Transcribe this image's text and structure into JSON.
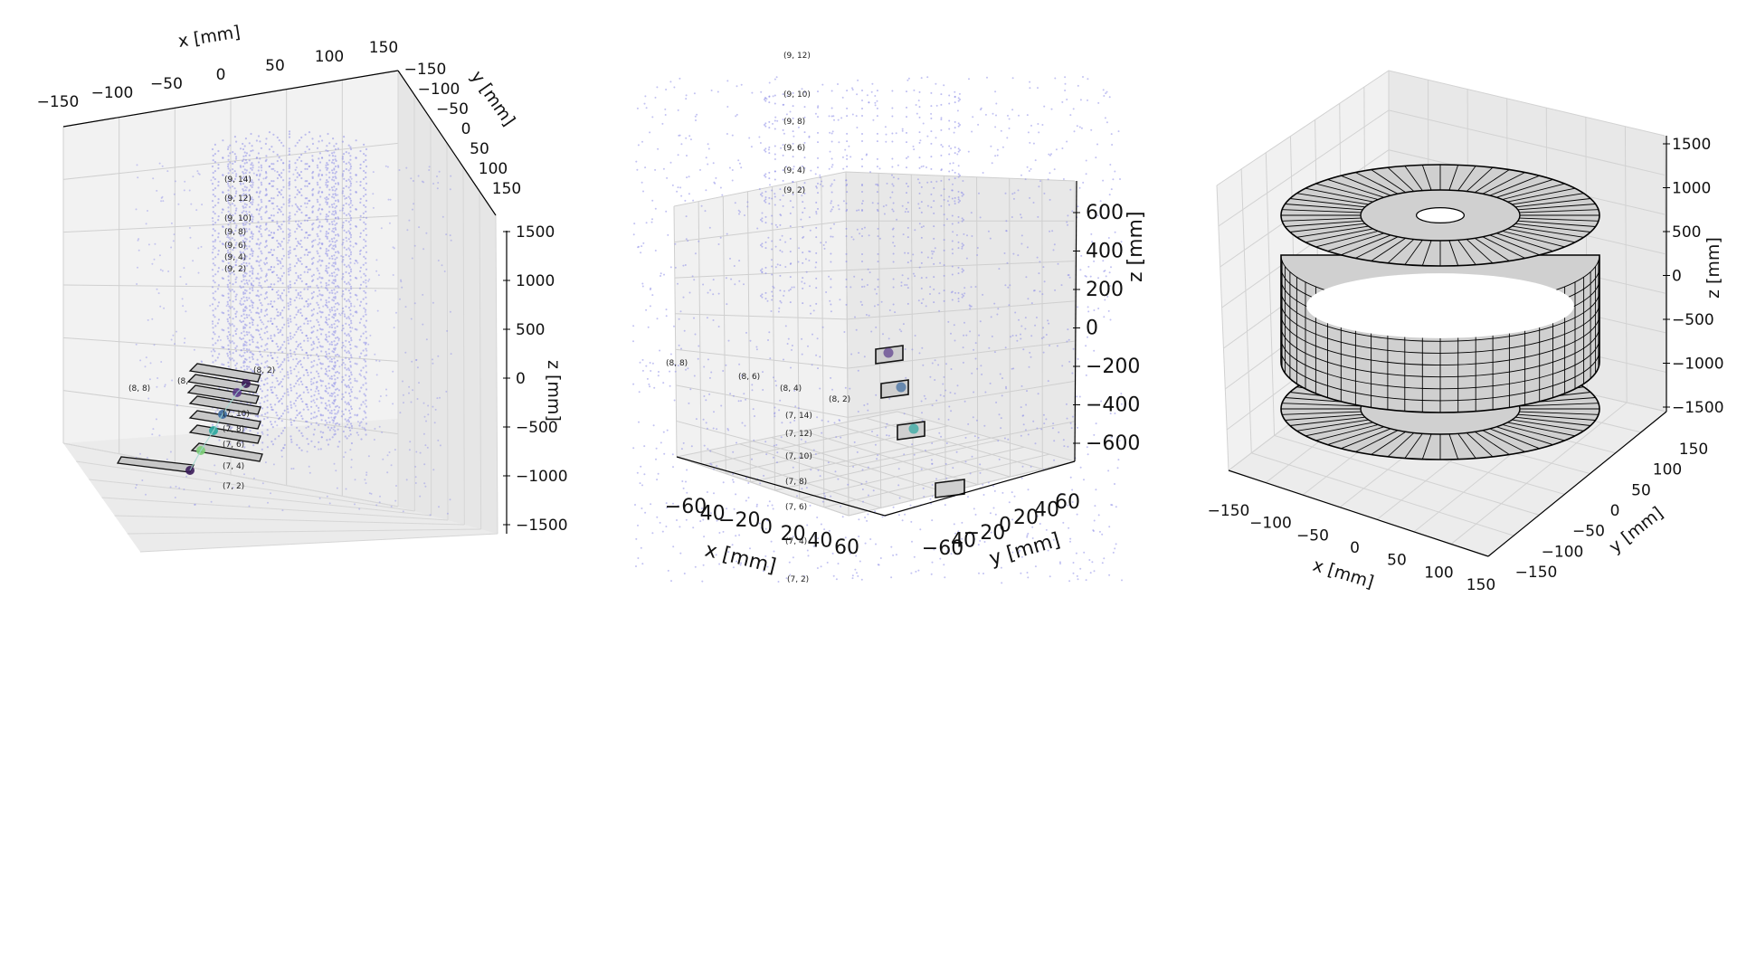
{
  "chart_data": [
    {
      "type": "scatter",
      "title": "",
      "xlabel": "x [mm]",
      "ylabel": "y [mm]",
      "zlabel": "z [mm]",
      "xlim": [
        -150,
        150
      ],
      "ylim": [
        -150,
        150
      ],
      "zlim": [
        -1500,
        1500
      ],
      "x_ticks": [
        "−150",
        "−100",
        "−50",
        "0",
        "50",
        "100",
        "150"
      ],
      "y_ticks": [
        "−150",
        "−100",
        "−50",
        "0",
        "50",
        "100",
        "150"
      ],
      "z_ticks": [
        "1500",
        "1000",
        "500",
        "0",
        "−500",
        "−1000",
        "−1500"
      ],
      "hit_labels": [
        "(9, 14)",
        "(9, 12)",
        "(9, 10)",
        "(9, 8)",
        "(9, 6)",
        "(9, 4)",
        "(9, 2)",
        "(8, 8)",
        "(8,",
        "(8, 2)",
        "(7, 10)",
        "(7, 8)",
        "(7, 6)",
        "(7, 4)",
        "(7, 2)"
      ],
      "point_color": "#8f8fe8",
      "module_color": "#c8c8c8",
      "track_colors": [
        "#3b1c5a",
        "#5a3a8a",
        "#3a6aa0",
        "#2aa7a0",
        "#7ccf78"
      ],
      "grid": true
    },
    {
      "type": "scatter",
      "title": "",
      "xlabel": "x [mm]",
      "ylabel": "y [mm]",
      "zlabel": "z [mm]",
      "x_ticks": [
        "−60",
        "40",
        "−20",
        "0",
        "20",
        "40",
        "60"
      ],
      "y_ticks": [
        "−60",
        "40",
        "−20",
        "0",
        "20",
        "40",
        "60"
      ],
      "z_ticks": [
        "600",
        "400",
        "200",
        "0",
        "−200",
        "−400",
        "−600"
      ],
      "hit_labels": [
        "(9, 12)",
        "(9, 10)",
        "(9, 8)",
        "(9, 6)",
        "(9, 4)",
        "(9, 2)",
        "(8, 8)",
        "(8, 6)",
        "(8, 4)",
        "(8, 2)",
        "(7, 14)",
        "(7, 12)",
        "(7, 10)",
        "(7, 8)",
        "(7, 6)",
        "(7, 4)",
        "(7, 2)"
      ],
      "point_color": "#8f8fe8",
      "grid": true
    },
    {
      "type": "surface",
      "title": "",
      "xlabel": "x [mm]",
      "ylabel": "y [mm]",
      "zlabel": "z [mm]",
      "x_ticks": [
        "−150",
        "−100",
        "−50",
        "0",
        "50",
        "100",
        "150"
      ],
      "y_ticks": [
        "150",
        "100",
        "50",
        "0",
        "−50",
        "−100",
        "−150"
      ],
      "z_ticks": [
        "1500",
        "1000",
        "500",
        "0",
        "−500",
        "−1000",
        "−1500"
      ],
      "fill_color": "#d0d0d0",
      "edge_color": "#000000",
      "grid": true
    }
  ]
}
